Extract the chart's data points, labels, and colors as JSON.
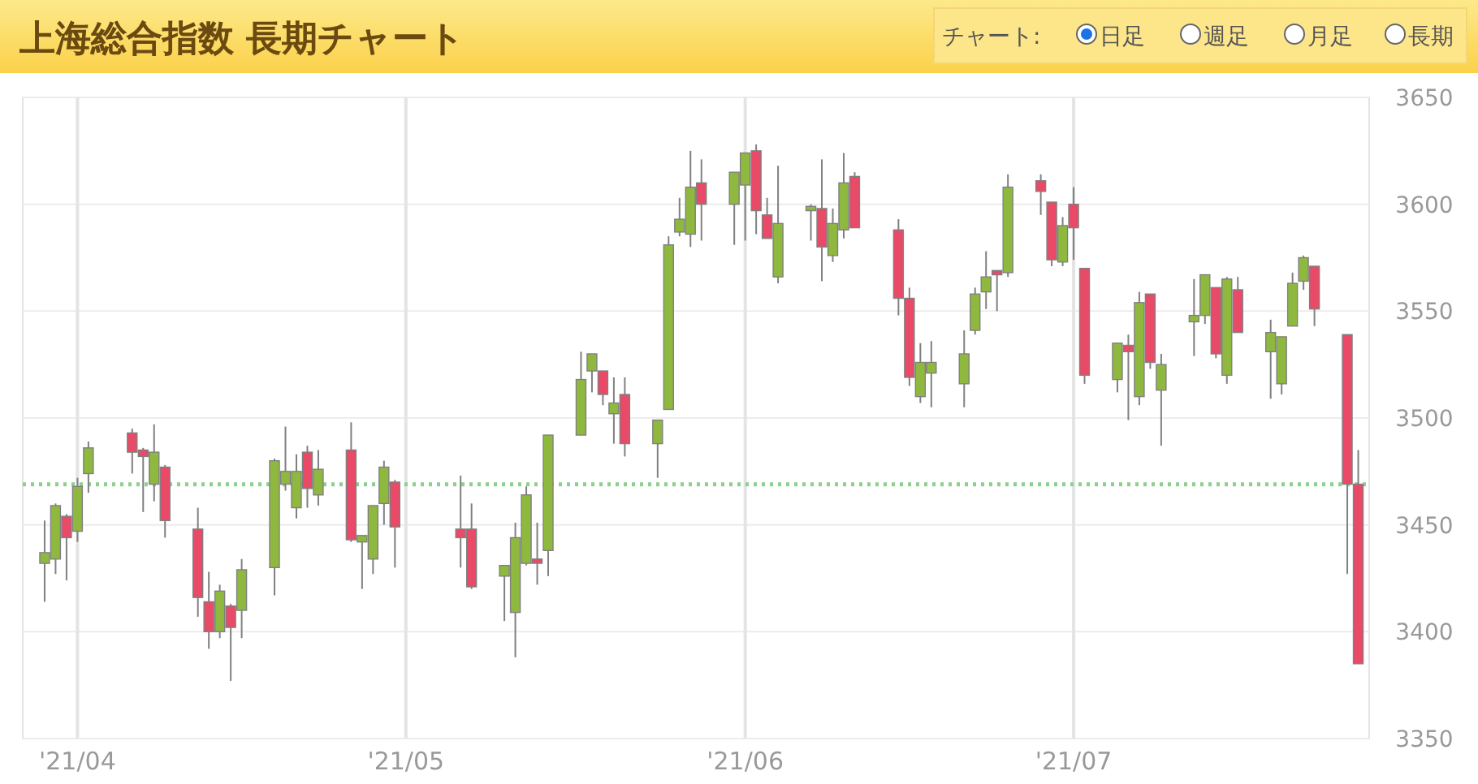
{
  "chart_data": {
    "type": "candlestick",
    "title": "上海総合指数 長期チャート",
    "annotations": [
      "チャート:",
      "日足",
      "週足",
      "月足",
      "長期"
    ],
    "x": [
      "2021-03-29",
      "2021-03-30",
      "2021-03-31",
      "2021-04-01",
      "2021-04-02",
      "2021-04-06",
      "2021-04-07",
      "2021-04-08",
      "2021-04-09",
      "2021-04-12",
      "2021-04-13",
      "2021-04-14",
      "2021-04-15",
      "2021-04-16",
      "2021-04-19",
      "2021-04-20",
      "2021-04-21",
      "2021-04-22",
      "2021-04-23",
      "2021-04-26",
      "2021-04-27",
      "2021-04-28",
      "2021-04-29",
      "2021-04-30",
      "2021-05-06",
      "2021-05-07",
      "2021-05-10",
      "2021-05-11",
      "2021-05-12",
      "2021-05-13",
      "2021-05-14",
      "2021-05-17",
      "2021-05-18",
      "2021-05-19",
      "2021-05-20",
      "2021-05-21",
      "2021-05-24",
      "2021-05-25",
      "2021-05-26",
      "2021-05-27",
      "2021-05-28",
      "2021-05-31",
      "2021-06-01",
      "2021-06-02",
      "2021-06-03",
      "2021-06-04",
      "2021-06-07",
      "2021-06-08",
      "2021-06-09",
      "2021-06-10",
      "2021-06-11",
      "2021-06-15",
      "2021-06-16",
      "2021-06-17",
      "2021-06-18",
      "2021-06-21",
      "2021-06-22",
      "2021-06-23",
      "2021-06-24",
      "2021-06-25",
      "2021-06-28",
      "2021-06-29",
      "2021-06-30",
      "2021-07-01",
      "2021-07-02",
      "2021-07-05",
      "2021-07-06",
      "2021-07-07",
      "2021-07-08",
      "2021-07-09",
      "2021-07-12",
      "2021-07-13",
      "2021-07-14",
      "2021-07-15",
      "2021-07-16",
      "2021-07-19",
      "2021-07-20",
      "2021-07-21",
      "2021-07-22",
      "2021-07-23",
      "2021-07-26",
      "2021-07-27"
    ],
    "ohlc": [
      [
        3432,
        3452,
        3414,
        3437
      ],
      [
        3434,
        3460,
        3427,
        3459
      ],
      [
        3454,
        3455,
        3424,
        3444
      ],
      [
        3447,
        3472,
        3442,
        3468
      ],
      [
        3474,
        3489,
        3465,
        3486
      ],
      [
        3493,
        3495,
        3474,
        3484
      ],
      [
        3485,
        3486,
        3456,
        3482
      ],
      [
        3469,
        3497,
        3461,
        3484
      ],
      [
        3477,
        3478,
        3444,
        3452
      ],
      [
        3448,
        3458,
        3407,
        3416
      ],
      [
        3414,
        3428,
        3392,
        3400
      ],
      [
        3400,
        3422,
        3397,
        3419
      ],
      [
        3412,
        3413,
        3377,
        3402
      ],
      [
        3410,
        3434,
        3397,
        3429
      ],
      [
        3430,
        3481,
        3417,
        3480
      ],
      [
        3469,
        3496,
        3466,
        3475
      ],
      [
        3458,
        3483,
        3453,
        3475
      ],
      [
        3484,
        3487,
        3458,
        3467
      ],
      [
        3464,
        3485,
        3459,
        3476
      ],
      [
        3485,
        3498,
        3442,
        3443
      ],
      [
        3442,
        3445,
        3420,
        3445
      ],
      [
        3434,
        3459,
        3427,
        3459
      ],
      [
        3460,
        3480,
        3450,
        3477
      ],
      [
        3470,
        3471,
        3430,
        3449
      ],
      [
        3448,
        3473,
        3430,
        3444
      ],
      [
        3448,
        3460,
        3420,
        3421
      ],
      [
        3426,
        3431,
        3405,
        3431
      ],
      [
        3409,
        3451,
        3388,
        3444
      ],
      [
        3432,
        3468,
        3431,
        3464
      ],
      [
        3434,
        3451,
        3422,
        3432
      ],
      [
        3438,
        3492,
        3426,
        3492
      ],
      [
        3492,
        3531,
        3492,
        3518
      ],
      [
        3522,
        3530,
        3512,
        3530
      ],
      [
        3522,
        3522,
        3506,
        3511
      ],
      [
        3502,
        3519,
        3488,
        3507
      ],
      [
        3511,
        3519,
        3482,
        3488
      ],
      [
        3488,
        3499,
        3472,
        3499
      ],
      [
        3504,
        3585,
        3504,
        3581
      ],
      [
        3587,
        3603,
        3585,
        3593
      ],
      [
        3586,
        3625,
        3580,
        3608
      ],
      [
        3610,
        3621,
        3583,
        3600
      ],
      [
        3600,
        3615,
        3581,
        3615
      ],
      [
        3609,
        3624,
        3583,
        3624
      ],
      [
        3625,
        3628,
        3586,
        3597
      ],
      [
        3595,
        3603,
        3584,
        3584
      ],
      [
        3566,
        3618,
        3563,
        3591
      ],
      [
        3597,
        3600,
        3583,
        3599
      ],
      [
        3598,
        3621,
        3564,
        3580
      ],
      [
        3576,
        3598,
        3573,
        3591
      ],
      [
        3588,
        3624,
        3584,
        3610
      ],
      [
        3613,
        3615,
        3589,
        3589
      ],
      [
        3588,
        3593,
        3548,
        3556
      ],
      [
        3556,
        3561,
        3515,
        3519
      ],
      [
        3510,
        3535,
        3507,
        3526
      ],
      [
        3521,
        3536,
        3505,
        3526
      ],
      [
        3516,
        3541,
        3505,
        3530
      ],
      [
        3541,
        3561,
        3539,
        3558
      ],
      [
        3559,
        3578,
        3551,
        3566
      ],
      [
        3569,
        3569,
        3550,
        3567
      ],
      [
        3568,
        3614,
        3566,
        3608
      ],
      [
        3611,
        3614,
        3595,
        3606
      ],
      [
        3601,
        3601,
        3571,
        3574
      ],
      [
        3573,
        3594,
        3571,
        3590
      ],
      [
        3600,
        3608,
        3574,
        3589
      ],
      [
        3570,
        3570,
        3516,
        3520
      ],
      [
        3518,
        3535,
        3512,
        3535
      ],
      [
        3534,
        3539,
        3499,
        3531
      ],
      [
        3510,
        3559,
        3506,
        3554
      ],
      [
        3558,
        3558,
        3523,
        3526
      ],
      [
        3513,
        3530,
        3487,
        3525
      ],
      [
        3545,
        3565,
        3529,
        3548
      ],
      [
        3548,
        3567,
        3544,
        3567
      ],
      [
        3561,
        3561,
        3528,
        3530
      ],
      [
        3520,
        3566,
        3516,
        3565
      ],
      [
        3560,
        3566,
        3540,
        3540
      ],
      [
        3531,
        3546,
        3509,
        3540
      ],
      [
        3516,
        3538,
        3511,
        3538
      ],
      [
        3543,
        3568,
        3543,
        3563
      ],
      [
        3564,
        3576,
        3560,
        3575
      ],
      [
        3571,
        3571,
        3543,
        3551
      ],
      [
        3539,
        3539,
        3427,
        3469
      ],
      [
        3469,
        3485,
        3385,
        3385
      ]
    ],
    "colors": [
      "#8fb83f",
      "#8fb83f",
      "#e84a67",
      "#8fb83f",
      "#8fb83f",
      "#e84a67",
      "#e84a67",
      "#8fb83f",
      "#e84a67",
      "#e84a67",
      "#e84a67",
      "#8fb83f",
      "#e84a67",
      "#8fb83f",
      "#8fb83f",
      "#8fb83f",
      "#8fb83f",
      "#e84a67",
      "#8fb83f",
      "#e84a67",
      "#8fb83f",
      "#8fb83f",
      "#8fb83f",
      "#e84a67",
      "#e84a67",
      "#e84a67",
      "#8fb83f",
      "#8fb83f",
      "#8fb83f",
      "#e84a67",
      "#8fb83f",
      "#8fb83f",
      "#8fb83f",
      "#e84a67",
      "#8fb83f",
      "#e84a67",
      "#8fb83f",
      "#8fb83f",
      "#8fb83f",
      "#8fb83f",
      "#e84a67",
      "#8fb83f",
      "#8fb83f",
      "#e84a67",
      "#e84a67",
      "#8fb83f",
      "#8fb83f",
      "#e84a67",
      "#8fb83f",
      "#8fb83f",
      "#e84a67",
      "#e84a67",
      "#e84a67",
      "#8fb83f",
      "#8fb83f",
      "#8fb83f",
      "#8fb83f",
      "#8fb83f",
      "#e84a67",
      "#8fb83f",
      "#e84a67",
      "#e84a67",
      "#8fb83f",
      "#e84a67",
      "#e84a67",
      "#8fb83f",
      "#e84a67",
      "#8fb83f",
      "#e84a67",
      "#8fb83f",
      "#8fb83f",
      "#8fb83f",
      "#e84a67",
      "#8fb83f",
      "#e84a67",
      "#8fb83f",
      "#8fb83f",
      "#8fb83f",
      "#8fb83f",
      "#e84a67",
      "#e84a67",
      "#e84a67"
    ],
    "xlim": [
      "2021-03-27",
      "2021-07-28"
    ],
    "xticks": [
      {
        "value": "2021-04-01",
        "label": "'21/04"
      },
      {
        "value": "2021-05-01",
        "label": "'21/05"
      },
      {
        "value": "2021-06-01",
        "label": "'21/06"
      },
      {
        "value": "2021-07-01",
        "label": "'21/07"
      }
    ],
    "ylim": [
      3350,
      3650
    ],
    "yticks": [
      3350,
      3400,
      3450,
      3500,
      3550,
      3600,
      3650
    ],
    "grid": true,
    "ref_lines": [
      {
        "axis": "y",
        "value": 3469,
        "color": "#8fd08f",
        "line_style": "dotted"
      }
    ]
  }
}
